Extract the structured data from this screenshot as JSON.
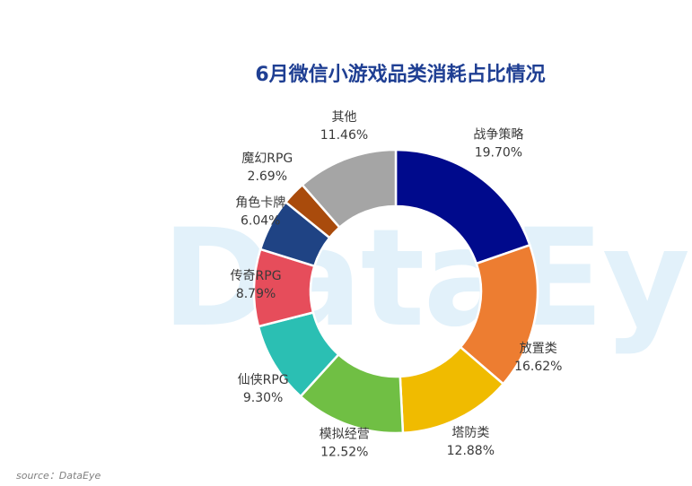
{
  "chart_data": {
    "type": "pie",
    "title": "6月微信小游戏品类消耗占比情况",
    "categories": [
      "战争策略",
      "放置类",
      "塔防类",
      "模拟经营",
      "仙侠RPG",
      "传奇RPG",
      "角色卡牌",
      "魔幻RPG",
      "其他"
    ],
    "values": [
      19.7,
      16.62,
      12.88,
      12.52,
      9.3,
      8.79,
      6.04,
      2.69,
      11.46
    ],
    "value_labels": [
      "19.70%",
      "16.62%",
      "12.88%",
      "12.52%",
      "9.30%",
      "8.79%",
      "6.04%",
      "2.69%",
      "11.46%"
    ],
    "colors": [
      "#000a8c",
      "#ed7d31",
      "#f0bb00",
      "#70bf44",
      "#2bbfb3",
      "#e64d5b",
      "#1f4384",
      "#a94b0c",
      "#a5a5a5"
    ],
    "unit": "%",
    "legend": "none"
  },
  "watermark": "DataEye",
  "source": "source：DataEye"
}
